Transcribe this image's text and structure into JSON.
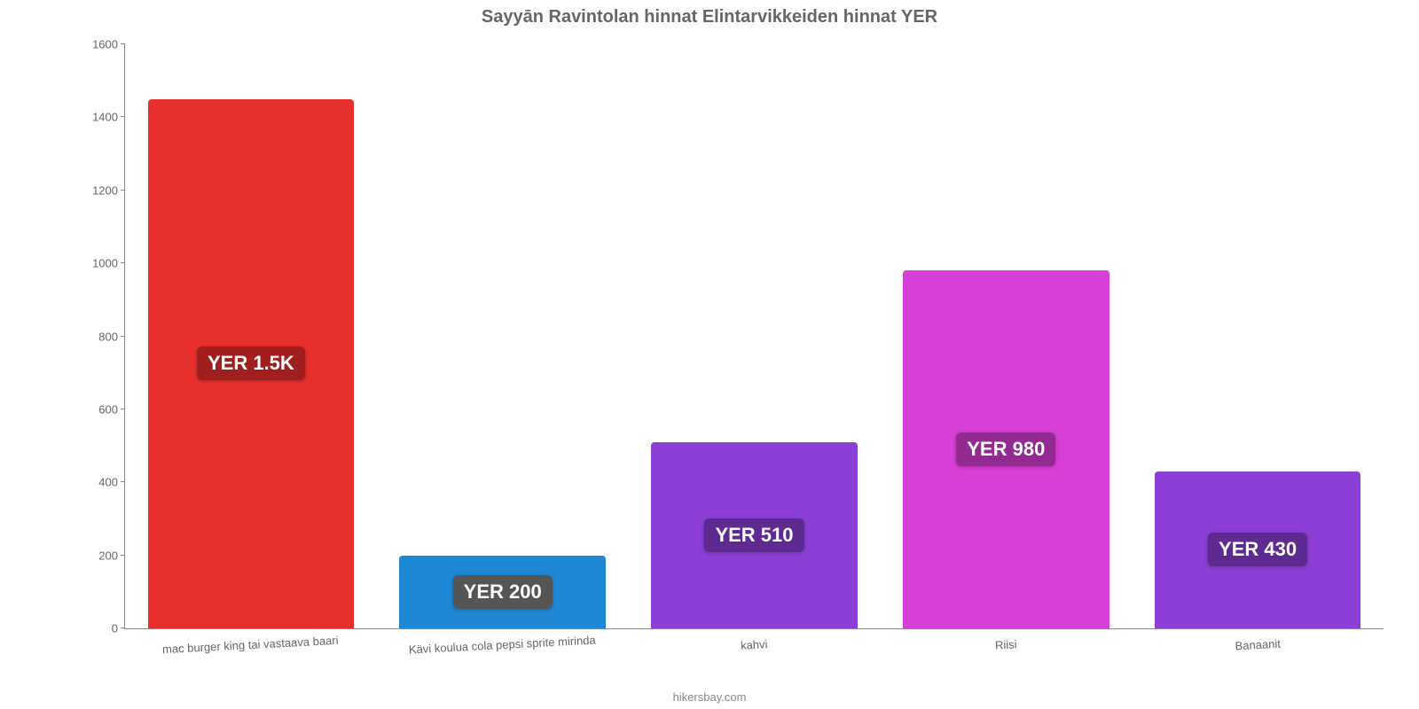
{
  "chart": {
    "type": "bar",
    "title": "Sayyān Ravintolan hinnat Elintarvikkeiden hinnat YER",
    "title_color": "#666666",
    "title_fontsize": 20,
    "background_color": "#ffffff",
    "ylim": [
      0,
      1600
    ],
    "ytick_step": 200,
    "yticks": [
      0,
      200,
      400,
      600,
      800,
      1000,
      1200,
      1400,
      1600
    ],
    "axis_color": "#888888",
    "tick_label_color": "#666666",
    "tick_fontsize": 13,
    "bar_width_pct": 82,
    "categories": [
      "mac burger king tai vastaava baari",
      "Kävi koulua cola pepsi sprite mirinda",
      "kahvi",
      "Riisi",
      "Banaanit"
    ],
    "values": [
      1450,
      200,
      510,
      980,
      430
    ],
    "value_labels": [
      "YER 1.5K",
      "YER 200",
      "YER 510",
      "YER 980",
      "YER 430"
    ],
    "bar_colors": [
      "#e7302e",
      "#1e88d6",
      "#8c3fd6",
      "#d83fd6",
      "#8c3fd6"
    ],
    "label_bg_colors": [
      "#a01f1e",
      "#555555",
      "#5e2a92",
      "#922a92",
      "#5e2a92"
    ],
    "label_text_color": "#ffffff",
    "label_fontsize": 22,
    "attribution": "hikersbay.com",
    "attribution_color": "#888888"
  }
}
